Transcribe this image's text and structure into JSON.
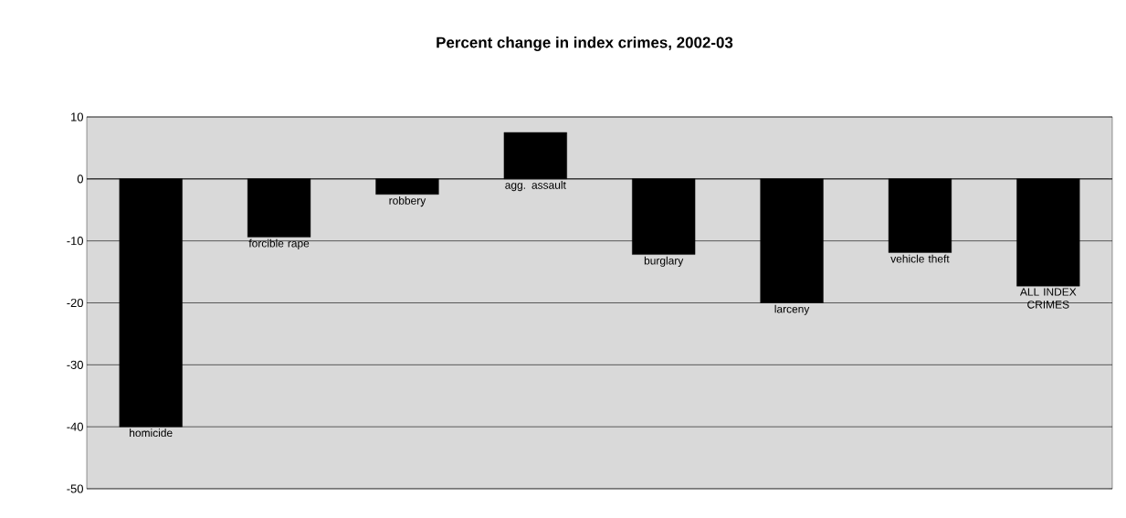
{
  "chart_data": {
    "type": "bar",
    "title": "Percent change in index crimes, 2002-03",
    "categories": [
      "homicide",
      "forcible rape",
      "robbery",
      "agg. assault",
      "burglary",
      "larceny",
      "vehicle theft",
      "ALL INDEX CRIMES"
    ],
    "values": [
      -40,
      -9.4,
      -2.5,
      7.5,
      -12.2,
      -20,
      -11.9,
      -17.3
    ],
    "color": "#000000",
    "ylim": [
      -50,
      10
    ],
    "yticks": [
      -50,
      -40,
      -30,
      -20,
      -10,
      0,
      10
    ],
    "grid": "y"
  }
}
